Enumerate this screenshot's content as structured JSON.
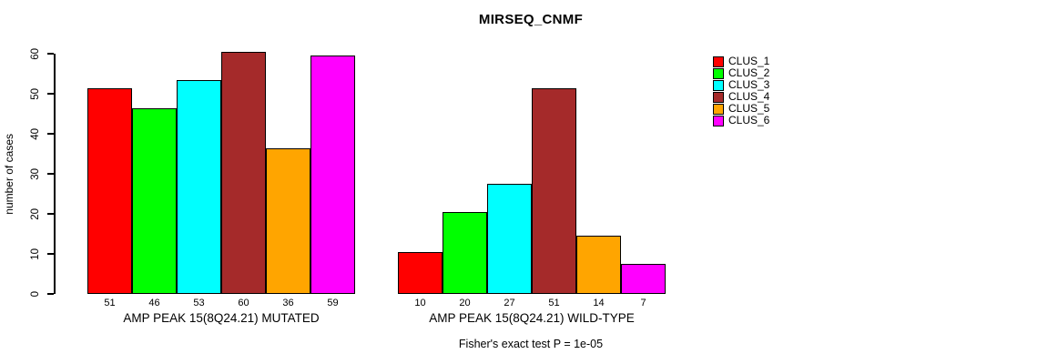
{
  "chart_data": {
    "type": "bar",
    "title": "MIRSEQ_CNMF",
    "ylabel": "number of cases",
    "ylim": [
      0,
      60
    ],
    "yticks": [
      0,
      10,
      20,
      30,
      40,
      50,
      60
    ],
    "grid": false,
    "legend_position": "right",
    "categories": [
      "AMP PEAK 15(8Q24.21) MUTATED",
      "AMP PEAK 15(8Q24.21) WILD-TYPE"
    ],
    "series": [
      {
        "name": "CLUS_1",
        "color": "#FF0000",
        "values": [
          51,
          10
        ]
      },
      {
        "name": "CLUS_2",
        "color": "#00FF00",
        "values": [
          46,
          20
        ]
      },
      {
        "name": "CLUS_3",
        "color": "#00FFFF",
        "values": [
          53,
          27
        ]
      },
      {
        "name": "CLUS_4",
        "color": "#A52A2A",
        "values": [
          60,
          51
        ]
      },
      {
        "name": "CLUS_5",
        "color": "#FFA500",
        "values": [
          36,
          14
        ]
      },
      {
        "name": "CLUS_6",
        "color": "#FF00FF",
        "values": [
          59,
          7
        ]
      }
    ],
    "bar_value_labels": [
      [
        51,
        46,
        53,
        60,
        36,
        59
      ],
      [
        10,
        20,
        27,
        51,
        14,
        7
      ]
    ],
    "annotation": "Fisher's exact test P = 1e-05"
  }
}
